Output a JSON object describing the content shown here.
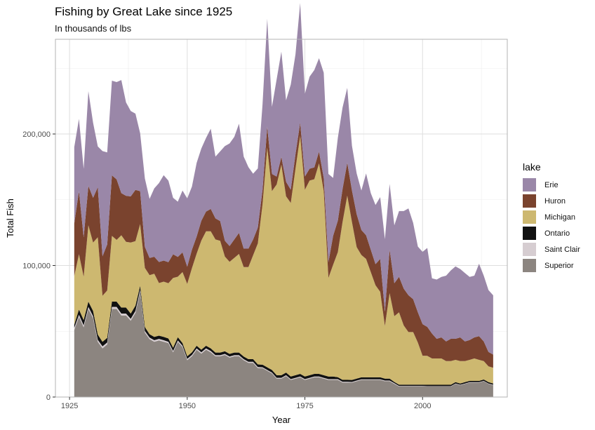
{
  "chart_data": {
    "type": "area",
    "stacked": true,
    "title": "Fishing by Great Lake since 1925",
    "subtitle": "In thousands of lbs",
    "xlabel": "Year",
    "ylabel": "Total Fish",
    "xlim": [
      1922,
      2018
    ],
    "ylim": [
      0,
      272000
    ],
    "x_ticks": [
      1925,
      1950,
      1975,
      2000
    ],
    "y_ticks": [
      0,
      100000,
      200000
    ],
    "y_tick_labels": [
      "0",
      "100,000",
      "200,000"
    ],
    "grid": true,
    "legend_title": "lake",
    "legend_position": "right",
    "series_order_bottom_to_top": [
      "Superior",
      "Saint Clair",
      "Ontario",
      "Michigan",
      "Huron",
      "Erie"
    ],
    "legend_order": [
      "Erie",
      "Huron",
      "Michigan",
      "Ontario",
      "Saint Clair",
      "Superior"
    ],
    "colors": {
      "Erie": "#9a87a8",
      "Huron": "#7a432e",
      "Michigan": "#cdb870",
      "Ontario": "#111111",
      "Saint Clair": "#d6cdd1",
      "Superior": "#8c8580"
    },
    "x": [
      1926,
      1927,
      1928,
      1929,
      1930,
      1931,
      1932,
      1933,
      1934,
      1935,
      1936,
      1937,
      1938,
      1939,
      1940,
      1941,
      1942,
      1943,
      1944,
      1945,
      1946,
      1947,
      1948,
      1949,
      1950,
      1951,
      1952,
      1953,
      1954,
      1955,
      1956,
      1957,
      1958,
      1959,
      1960,
      1961,
      1962,
      1963,
      1964,
      1965,
      1966,
      1967,
      1968,
      1969,
      1970,
      1971,
      1972,
      1973,
      1974,
      1975,
      1976,
      1977,
      1978,
      1979,
      1980,
      1981,
      1982,
      1983,
      1984,
      1985,
      1986,
      1987,
      1988,
      1989,
      1990,
      1991,
      1992,
      1993,
      1994,
      1995,
      1996,
      1997,
      1998,
      1999,
      2000,
      2001,
      2002,
      2003,
      2004,
      2005,
      2006,
      2007,
      2008,
      2009,
      2010,
      2011,
      2012,
      2013,
      2014,
      2015
    ],
    "series": [
      {
        "name": "Superior",
        "values": [
          51000,
          61000,
          53000,
          67000,
          60000,
          42000,
          37000,
          40000,
          67000,
          67000,
          62000,
          62000,
          58000,
          64000,
          80000,
          49000,
          44000,
          42000,
          43000,
          42000,
          41000,
          34000,
          42000,
          38000,
          28000,
          31000,
          36000,
          33000,
          36000,
          34000,
          31000,
          31000,
          32000,
          30000,
          31000,
          31000,
          28000,
          26000,
          26000,
          22000,
          22000,
          20000,
          18000,
          14000,
          14000,
          16000,
          13000,
          14000,
          15000,
          13000,
          14000,
          15000,
          15000,
          14000,
          13000,
          13000,
          13000,
          11000,
          11000,
          11000,
          12000,
          13000,
          13000,
          13000,
          13000,
          13000,
          12000,
          12000,
          10000,
          8000,
          8000,
          8000,
          8000,
          8000,
          8000,
          8000,
          8000,
          8000,
          8000,
          8000,
          8000,
          10000,
          9000,
          10000,
          11000,
          11000,
          11000,
          12000,
          10000,
          9000
        ]
      },
      {
        "name": "Saint Clair",
        "values": [
          1500,
          1500,
          1500,
          1500,
          1500,
          1500,
          1500,
          1500,
          1500,
          1500,
          1500,
          1500,
          1500,
          1500,
          1500,
          1200,
          1200,
          1200,
          1200,
          1200,
          1000,
          1000,
          1000,
          1000,
          1000,
          1000,
          1000,
          1000,
          1000,
          1000,
          800,
          800,
          800,
          800,
          800,
          800,
          800,
          800,
          800,
          800,
          600,
          600,
          600,
          600,
          600,
          600,
          600,
          600,
          600,
          600,
          600,
          600,
          600,
          600,
          600,
          600,
          600,
          600,
          600,
          500,
          500,
          500,
          500,
          500,
          500,
          500,
          500,
          500,
          500,
          400,
          400,
          400,
          400,
          400,
          400,
          300,
          300,
          300,
          300,
          300,
          300,
          300,
          300,
          300,
          300,
          300,
          300,
          300,
          300,
          300
        ]
      },
      {
        "name": "Ontario",
        "values": [
          2500,
          4000,
          4000,
          4000,
          4000,
          4000,
          3500,
          3500,
          4000,
          4000,
          4500,
          4500,
          4000,
          4000,
          3000,
          3000,
          2500,
          2500,
          2500,
          2500,
          2500,
          2500,
          2500,
          2000,
          2000,
          2000,
          2000,
          2000,
          2000,
          2000,
          2000,
          2000,
          2000,
          2000,
          2000,
          2000,
          2000,
          2000,
          2000,
          2000,
          2000,
          2000,
          2000,
          2000,
          2000,
          2000,
          2000,
          2000,
          2000,
          2000,
          2000,
          2000,
          2000,
          2000,
          2000,
          2000,
          1500,
          1500,
          1500,
          1500,
          1500,
          1500,
          1500,
          1500,
          1500,
          1500,
          1500,
          1500,
          1000,
          1000,
          1000,
          1000,
          1000,
          1000,
          1000,
          1000,
          1000,
          1000,
          1000,
          1000,
          1000,
          1000,
          1000,
          1000,
          1000,
          1000,
          1000,
          1000,
          1000,
          1000
        ]
      },
      {
        "name": "Michigan",
        "values": [
          37000,
          42000,
          33000,
          58000,
          52000,
          74000,
          35000,
          36000,
          50000,
          47000,
          55000,
          50000,
          54000,
          49000,
          47000,
          45000,
          45000,
          48000,
          40000,
          42000,
          42000,
          53000,
          46000,
          54000,
          55000,
          64000,
          70000,
          83000,
          87000,
          89000,
          86000,
          85000,
          72000,
          70000,
          72000,
          75000,
          68000,
          70000,
          79000,
          92000,
          122000,
          167000,
          136000,
          145000,
          160000,
          134000,
          132000,
          157000,
          181000,
          142000,
          148000,
          148000,
          160000,
          140000,
          75000,
          85000,
          95000,
          120000,
          140000,
          120000,
          100000,
          93000,
          90000,
          80000,
          70000,
          65000,
          40000,
          65000,
          50000,
          55000,
          45000,
          40000,
          40000,
          32000,
          22000,
          22000,
          20000,
          20000,
          20000,
          18000,
          18000,
          17000,
          17000,
          16000,
          16000,
          17000,
          16000,
          14000,
          12000,
          12000
        ]
      },
      {
        "name": "Huron",
        "values": [
          40000,
          48000,
          30000,
          30000,
          34000,
          38000,
          30000,
          35000,
          46000,
          46000,
          32000,
          35000,
          35000,
          39000,
          25000,
          16000,
          13000,
          13000,
          16000,
          16000,
          16000,
          18000,
          15000,
          15000,
          13000,
          14000,
          13000,
          15000,
          15000,
          17000,
          16000,
          15000,
          12000,
          12000,
          14000,
          16000,
          14000,
          14000,
          12000,
          12000,
          11000,
          16000,
          13000,
          6000,
          6000,
          11000,
          10000,
          11000,
          10000,
          10000,
          9000,
          9000,
          9000,
          10000,
          12000,
          22000,
          24000,
          25000,
          25000,
          24000,
          25000,
          19000,
          18000,
          17000,
          16000,
          25000,
          11000,
          33000,
          25000,
          27000,
          28000,
          28000,
          25000,
          23000,
          24000,
          22000,
          19000,
          15000,
          16000,
          15000,
          17000,
          16000,
          18000,
          15000,
          15000,
          16000,
          18000,
          15000,
          11000,
          10000
        ]
      },
      {
        "name": "Erie",
        "values": [
          58000,
          55000,
          52000,
          72000,
          57000,
          31000,
          80000,
          70000,
          72000,
          74000,
          86000,
          71000,
          65000,
          58000,
          44000,
          52000,
          45000,
          52000,
          60000,
          65000,
          62000,
          43000,
          42000,
          47000,
          52000,
          48000,
          56000,
          55000,
          56000,
          61000,
          47000,
          53000,
          72000,
          78000,
          78000,
          83000,
          70000,
          62000,
          50000,
          45000,
          65000,
          82000,
          51000,
          74000,
          80000,
          62000,
          80000,
          76000,
          91000,
          63000,
          70000,
          74000,
          71000,
          80000,
          67000,
          44000,
          63000,
          62000,
          57000,
          34000,
          31000,
          30000,
          47000,
          43000,
          45000,
          47000,
          55000,
          50000,
          44000,
          50000,
          59000,
          66000,
          58000,
          50000,
          55000,
          60000,
          42000,
          45000,
          46000,
          50000,
          52000,
          55000,
          52000,
          52000,
          48000,
          47000,
          55000,
          50000,
          47000,
          45000
        ]
      }
    ]
  }
}
